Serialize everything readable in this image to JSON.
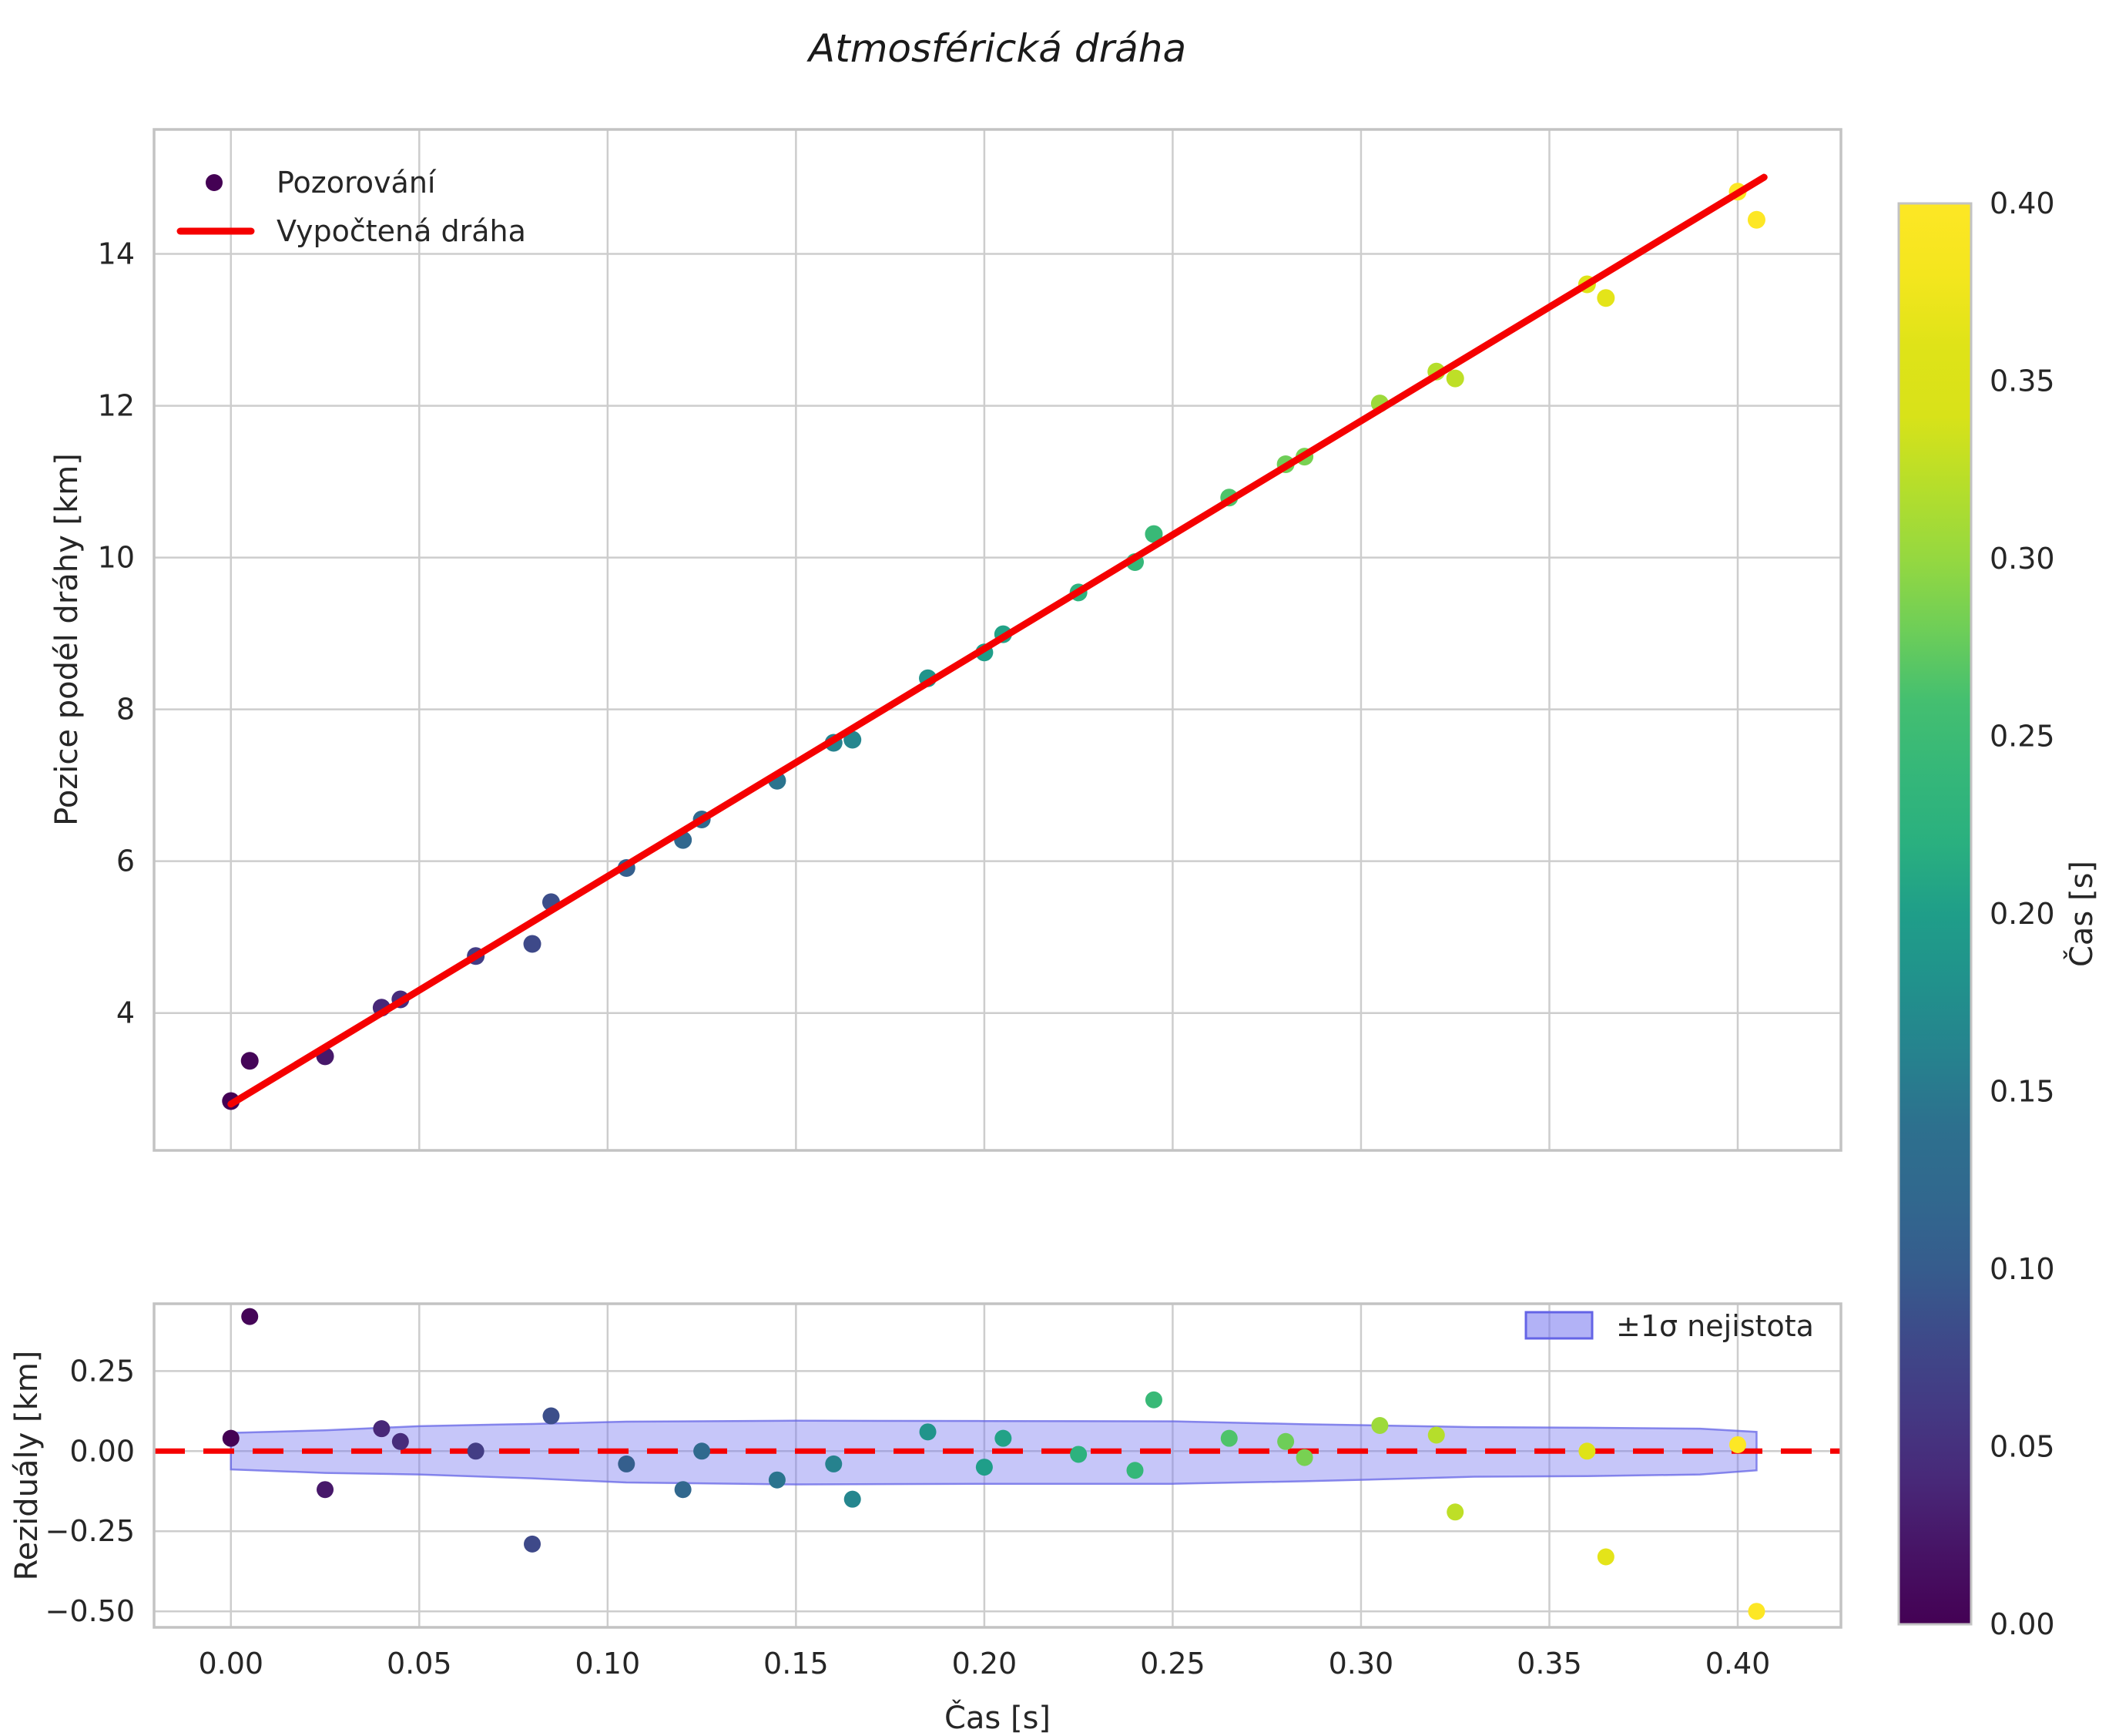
{
  "title": "Atmosférická dráha",
  "colors": {
    "background": "#ffffff",
    "grid": "#cdcdcd",
    "spine": "#c3c3c3",
    "text": "#262626",
    "fit_line": "#f50000",
    "zero_line": "#f50000",
    "band_fill": "#7878f0",
    "band_fill_alpha": 0.42,
    "band_edge": "#6464e6",
    "band_edge_alpha": 0.75,
    "legend_marker": "#440154",
    "viridis_stops": [
      [
        0.0,
        "#440154"
      ],
      [
        0.05,
        "#471365"
      ],
      [
        0.1,
        "#482878"
      ],
      [
        0.15,
        "#443983"
      ],
      [
        0.2,
        "#3e4989"
      ],
      [
        0.25,
        "#365c8d"
      ],
      [
        0.3,
        "#31688e"
      ],
      [
        0.35,
        "#2d708e"
      ],
      [
        0.4,
        "#26828e"
      ],
      [
        0.45,
        "#21918c"
      ],
      [
        0.5,
        "#1f9e89"
      ],
      [
        0.55,
        "#2ab07f"
      ],
      [
        0.6,
        "#35b779"
      ],
      [
        0.65,
        "#44bf70"
      ],
      [
        0.7,
        "#6ece58"
      ],
      [
        0.75,
        "#95d840"
      ],
      [
        0.8,
        "#b5de2b"
      ],
      [
        0.85,
        "#d8e219"
      ],
      [
        0.9,
        "#dfe318"
      ],
      [
        0.95,
        "#f4e61e"
      ],
      [
        1.0,
        "#fde725"
      ]
    ]
  },
  "chart_data": [
    {
      "type": "scatter",
      "panel": "main",
      "title": "Atmosférická dráha",
      "xlabel": "",
      "ylabel": "Pozice podél dráhy [km]",
      "xlim": [
        -0.0204,
        0.4274
      ],
      "ylim": [
        2.19,
        15.64
      ],
      "grid": true,
      "yticks": [
        4,
        6,
        8,
        10,
        12,
        14
      ],
      "xticks": [
        0.0,
        0.05,
        0.1,
        0.15,
        0.2,
        0.25,
        0.3,
        0.35,
        0.4
      ],
      "legend": {
        "position": "upper left",
        "entries": [
          "Pozorování",
          "Vypočtená dráha"
        ]
      },
      "series": [
        {
          "name": "Pozorování",
          "kind": "scatter",
          "color_by": "time_viridis",
          "x": [
            0.0,
            0.005,
            0.025,
            0.04,
            0.045,
            0.065,
            0.08,
            0.085,
            0.105,
            0.12,
            0.125,
            0.145,
            0.16,
            0.165,
            0.185,
            0.2,
            0.205,
            0.225,
            0.24,
            0.245,
            0.265,
            0.28,
            0.285,
            0.305,
            0.32,
            0.325,
            0.36,
            0.365,
            0.4,
            0.405
          ],
          "y": [
            2.84,
            3.37,
            3.43,
            4.07,
            4.18,
            4.75,
            4.91,
            5.46,
            5.91,
            6.28,
            6.55,
            7.06,
            7.56,
            7.6,
            8.41,
            8.75,
            8.99,
            9.54,
            9.94,
            10.31,
            10.79,
            11.23,
            11.33,
            12.03,
            12.45,
            12.36,
            13.6,
            13.42,
            14.82,
            14.45
          ]
        },
        {
          "name": "Vypočtená dráha",
          "kind": "line",
          "color": "#f50000",
          "x": [
            0.0,
            0.407
          ],
          "y": [
            2.8,
            15.01
          ]
        }
      ]
    },
    {
      "type": "scatter",
      "panel": "residuals",
      "xlabel": "Čas [s]",
      "ylabel": "Reziduály [km]",
      "xlim": [
        -0.0204,
        0.4274
      ],
      "ylim": [
        -0.55,
        0.46
      ],
      "grid": true,
      "yticks": [
        0.25,
        0.0,
        -0.25,
        -0.5
      ],
      "ytick_labels": [
        "0.25",
        "0.00",
        "−0.25",
        "−0.50"
      ],
      "xticks": [
        0.0,
        0.05,
        0.1,
        0.15,
        0.2,
        0.25,
        0.3,
        0.35,
        0.4
      ],
      "xtick_labels": [
        "0.00",
        "0.05",
        "0.10",
        "0.15",
        "0.20",
        "0.25",
        "0.30",
        "0.35",
        "0.40"
      ],
      "legend": {
        "position": "upper right",
        "entries": [
          "±1σ nejistota"
        ]
      },
      "series": [
        {
          "name": "rezidualy",
          "kind": "scatter",
          "color_by": "time_viridis",
          "x": [
            0.0,
            0.005,
            0.025,
            0.04,
            0.045,
            0.065,
            0.08,
            0.085,
            0.105,
            0.12,
            0.125,
            0.145,
            0.16,
            0.165,
            0.185,
            0.2,
            0.205,
            0.225,
            0.24,
            0.245,
            0.265,
            0.28,
            0.285,
            0.305,
            0.32,
            0.325,
            0.36,
            0.365,
            0.4,
            0.405
          ],
          "y": [
            0.04,
            0.42,
            -0.12,
            0.07,
            0.03,
            0.0,
            -0.29,
            0.11,
            -0.04,
            -0.12,
            0.0,
            -0.09,
            -0.04,
            -0.15,
            0.06,
            -0.05,
            0.04,
            -0.01,
            -0.06,
            0.16,
            0.04,
            0.03,
            -0.02,
            0.08,
            0.05,
            -0.19,
            0.0,
            -0.33,
            0.02,
            -0.5
          ]
        },
        {
          "name": "±1σ nejistota",
          "kind": "band",
          "t": [
            0.0,
            0.025,
            0.05,
            0.08,
            0.105,
            0.15,
            0.2,
            0.25,
            0.285,
            0.305,
            0.33,
            0.36,
            0.39,
            0.405
          ],
          "upper": [
            0.057,
            0.065,
            0.078,
            0.085,
            0.092,
            0.095,
            0.094,
            0.093,
            0.084,
            0.08,
            0.075,
            0.073,
            0.07,
            0.06
          ],
          "lower": [
            -0.057,
            -0.068,
            -0.073,
            -0.085,
            -0.098,
            -0.104,
            -0.102,
            -0.102,
            -0.094,
            -0.088,
            -0.08,
            -0.078,
            -0.073,
            -0.06
          ]
        },
        {
          "name": "nula",
          "kind": "dashed-line",
          "y": 0,
          "color": "#f50000"
        }
      ]
    }
  ],
  "colorbar": {
    "label": "Čas [s]",
    "colormap": "viridis",
    "vmin": 0.0,
    "vmax": 0.4,
    "ticks": [
      "0.40",
      "0.35",
      "0.30",
      "0.25",
      "0.20",
      "0.15",
      "0.10",
      "0.05",
      "0.00"
    ]
  }
}
